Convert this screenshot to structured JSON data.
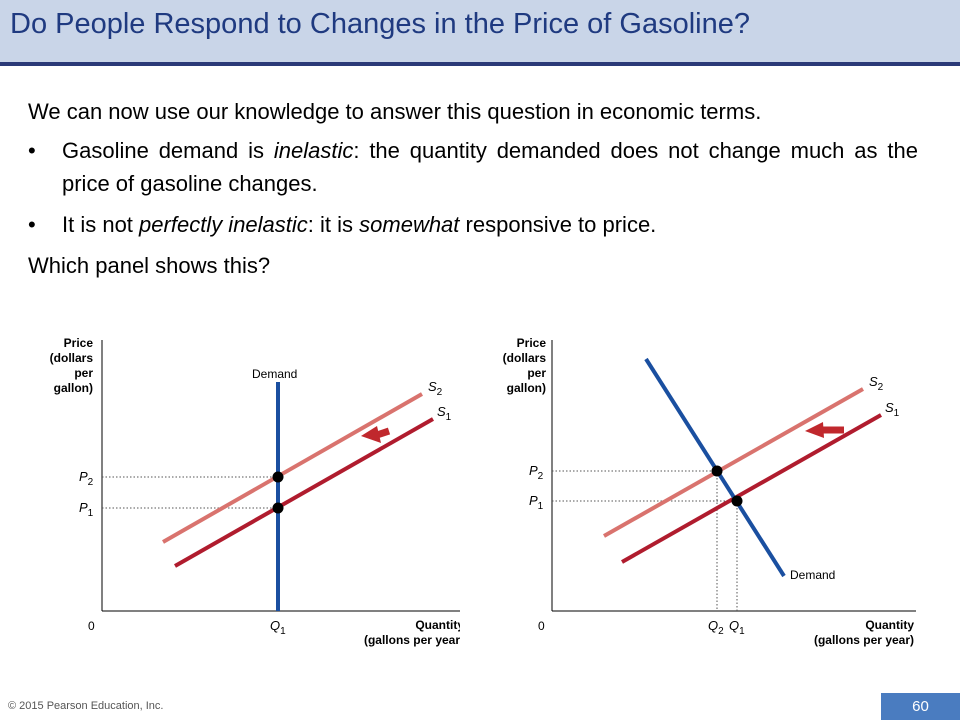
{
  "slide": {
    "title": "Do People Respond to Changes in the Price of Gasoline?",
    "intro": "We can now use our knowledge to answer this question in economic terms.",
    "bullets": [
      [
        {
          "t": "Gasoline demand is ",
          "i": false
        },
        {
          "t": "inelastic",
          "i": true
        },
        {
          "t": ": the quantity demanded does not change much as the price of gasoline changes.",
          "i": false
        }
      ],
      [
        {
          "t": "It is not ",
          "i": false
        },
        {
          "t": "perfectly inelastic",
          "i": true
        },
        {
          "t": ": it is ",
          "i": false
        },
        {
          "t": "somewhat",
          "i": true
        },
        {
          "t": " responsive to price.",
          "i": false
        }
      ]
    ],
    "bullet_char": "•",
    "question": "Which panel shows this?",
    "footer": "© 2015 Pearson Education, Inc.",
    "page_number": "60"
  },
  "colors": {
    "title": "#1f3a80",
    "header_bg": "#c9d5e8",
    "header_rule": "#2b3a78",
    "demand": "#1a4fa0",
    "s1": "#b01c2e",
    "s2": "#d9736e",
    "arrow": "#c0282d",
    "page_badge": "#4a7cc0"
  },
  "chart_data": [
    {
      "type": "diagram",
      "panel": "left",
      "ylabel": [
        "Price",
        "(dollars",
        "per",
        "gallon)"
      ],
      "xlabel": [
        "Quantity",
        "(gallons per year)"
      ],
      "origin_label": "0",
      "curves": [
        {
          "name": "Demand",
          "kind": "vertical"
        },
        {
          "name": "S",
          "sub": "1"
        },
        {
          "name": "S",
          "sub": "2"
        }
      ],
      "price_labels": [
        {
          "name": "P",
          "sub": "2"
        },
        {
          "name": "P",
          "sub": "1"
        }
      ],
      "quantity_labels": [
        {
          "name": "Q",
          "sub": "1"
        }
      ]
    },
    {
      "type": "diagram",
      "panel": "right",
      "ylabel": [
        "Price",
        "(dollars",
        "per",
        "gallon)"
      ],
      "xlabel": [
        "Quantity",
        "(gallons per year)"
      ],
      "origin_label": "0",
      "curves": [
        {
          "name": "Demand",
          "kind": "downward-sloping"
        },
        {
          "name": "S",
          "sub": "1"
        },
        {
          "name": "S",
          "sub": "2"
        }
      ],
      "price_labels": [
        {
          "name": "P",
          "sub": "2"
        },
        {
          "name": "P",
          "sub": "1"
        }
      ],
      "quantity_labels": [
        {
          "name": "Q",
          "sub": "2"
        },
        {
          "name": "Q",
          "sub": "1"
        }
      ]
    }
  ]
}
